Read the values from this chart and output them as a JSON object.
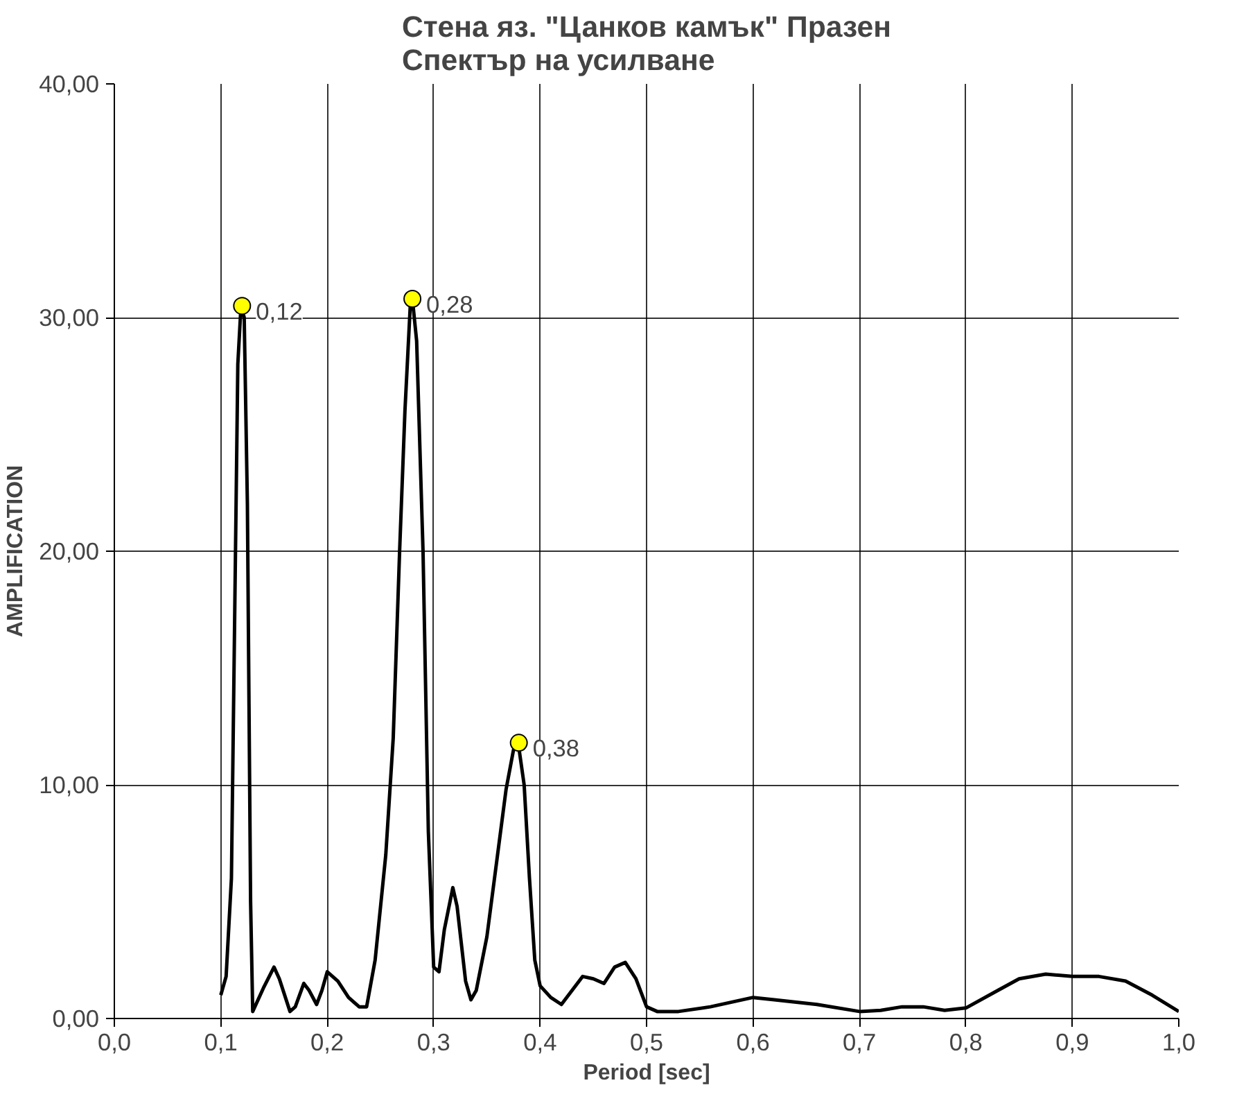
{
  "chart_data": {
    "type": "line",
    "title": "Стена яз. \"Цанков камък\" Празен\nСпектър на усилване",
    "xlabel": "Period [sec]",
    "ylabel": "AMPLIFICATION",
    "xlim": [
      0,
      1
    ],
    "ylim": [
      0,
      40
    ],
    "xticks": [
      {
        "value": 0,
        "label": "0,0"
      },
      {
        "value": 0.1,
        "label": "0,1"
      },
      {
        "value": 0.2,
        "label": "0,2"
      },
      {
        "value": 0.3,
        "label": "0,3"
      },
      {
        "value": 0.4,
        "label": "0,4"
      },
      {
        "value": 0.5,
        "label": "0,5"
      },
      {
        "value": 0.6,
        "label": "0,6"
      },
      {
        "value": 0.7,
        "label": "0,7"
      },
      {
        "value": 0.8,
        "label": "0,8"
      },
      {
        "value": 0.9,
        "label": "0,9"
      },
      {
        "value": 1,
        "label": "1,0"
      }
    ],
    "yticks": [
      {
        "value": 0,
        "label": "0,00"
      },
      {
        "value": 10,
        "label": "10,00"
      },
      {
        "value": 20,
        "label": "20,00"
      },
      {
        "value": 30,
        "label": "30,00"
      },
      {
        "value": 40,
        "label": "40,00"
      }
    ],
    "grid": true,
    "series": [
      {
        "color": "#000000",
        "marker": "none",
        "x": [
          0.1,
          0.105,
          0.11,
          0.113,
          0.116,
          0.119,
          0.122,
          0.125,
          0.128,
          0.13,
          0.14,
          0.15,
          0.155,
          0.165,
          0.17,
          0.178,
          0.183,
          0.19,
          0.195,
          0.2,
          0.21,
          0.22,
          0.23,
          0.237,
          0.245,
          0.255,
          0.262,
          0.268,
          0.273,
          0.278,
          0.28,
          0.284,
          0.29,
          0.295,
          0.3,
          0.305,
          0.31,
          0.318,
          0.322,
          0.33,
          0.335,
          0.34,
          0.35,
          0.36,
          0.368,
          0.375,
          0.38,
          0.385,
          0.39,
          0.395,
          0.4,
          0.41,
          0.42,
          0.43,
          0.44,
          0.45,
          0.46,
          0.47,
          0.48,
          0.49,
          0.5,
          0.51,
          0.53,
          0.56,
          0.58,
          0.6,
          0.62,
          0.66,
          0.7,
          0.72,
          0.74,
          0.76,
          0.78,
          0.8,
          0.83,
          0.85,
          0.875,
          0.9,
          0.925,
          0.95,
          0.975,
          1.0
        ],
        "values": [
          1.0,
          1.8,
          6,
          17,
          28,
          30.5,
          30,
          22,
          5,
          0.3,
          1.3,
          2.2,
          1.7,
          0.3,
          0.5,
          1.5,
          1.2,
          0.6,
          1.2,
          2.0,
          1.6,
          0.9,
          0.5,
          0.5,
          2.5,
          7,
          12,
          20,
          26,
          30.5,
          30.8,
          29,
          20,
          8,
          2.2,
          2,
          3.8,
          5.6,
          4.8,
          1.6,
          0.8,
          1.2,
          3.5,
          7,
          9.8,
          11.5,
          11.6,
          10,
          6,
          2.5,
          1.4,
          0.9,
          0.6,
          1.2,
          1.8,
          1.7,
          1.5,
          2.2,
          2.4,
          1.7,
          0.5,
          0.3,
          0.3,
          0.5,
          0.7,
          0.9,
          0.8,
          0.6,
          0.3,
          0.35,
          0.5,
          0.5,
          0.35,
          0.45,
          1.2,
          1.7,
          1.9,
          1.8,
          1.8,
          1.6,
          1.0,
          0.3
        ]
      },
      {
        "type": "scatter",
        "color": "#ffff00",
        "marker": "circle",
        "x": [
          0.12,
          0.28,
          0.38
        ],
        "values": [
          30.5,
          30.8,
          11.8
        ]
      }
    ],
    "annotations": [
      {
        "text": "0,12",
        "x": 0.12,
        "y": 30.5
      },
      {
        "text": "0,28",
        "x": 0.28,
        "y": 30.8
      },
      {
        "text": "0,38",
        "x": 0.38,
        "y": 11.8
      }
    ]
  }
}
